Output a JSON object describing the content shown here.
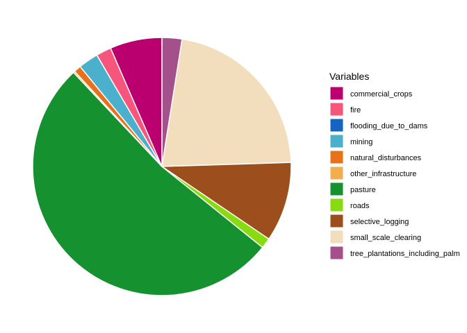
{
  "chart_data": {
    "type": "pie",
    "legend_title": "Variables",
    "legend_position": "right",
    "start_angle": "top, clockwise",
    "slices": [
      {
        "name": "tree_plantations_including_palm",
        "value": 2.5,
        "color": "#A4508B"
      },
      {
        "name": "small_scale_clearing",
        "value": 22.0,
        "color": "#F2DDBD"
      },
      {
        "name": "selective_logging",
        "value": 10.0,
        "color": "#9C4E1D"
      },
      {
        "name": "roads",
        "value": 1.3,
        "color": "#87DB0F"
      },
      {
        "name": "pasture",
        "value": 52.2,
        "color": "#169130"
      },
      {
        "name": "other_infrastructure",
        "value": 0.2,
        "color": "#F2AD4E"
      },
      {
        "name": "natural_disturbances",
        "value": 0.9,
        "color": "#E8721B"
      },
      {
        "name": "mining",
        "value": 2.5,
        "color": "#4AB0CB"
      },
      {
        "name": "flooding_due_to_dams",
        "value": 0.0,
        "color": "#1565C0"
      },
      {
        "name": "fire",
        "value": 1.9,
        "color": "#F7567C"
      },
      {
        "name": "commercial_crops",
        "value": 6.5,
        "color": "#BA006E"
      }
    ],
    "legend_order": [
      "commercial_crops",
      "fire",
      "flooding_due_to_dams",
      "mining",
      "natural_disturbances",
      "other_infrastructure",
      "pasture",
      "roads",
      "selective_logging",
      "small_scale_clearing",
      "tree_plantations_including_palm"
    ]
  }
}
